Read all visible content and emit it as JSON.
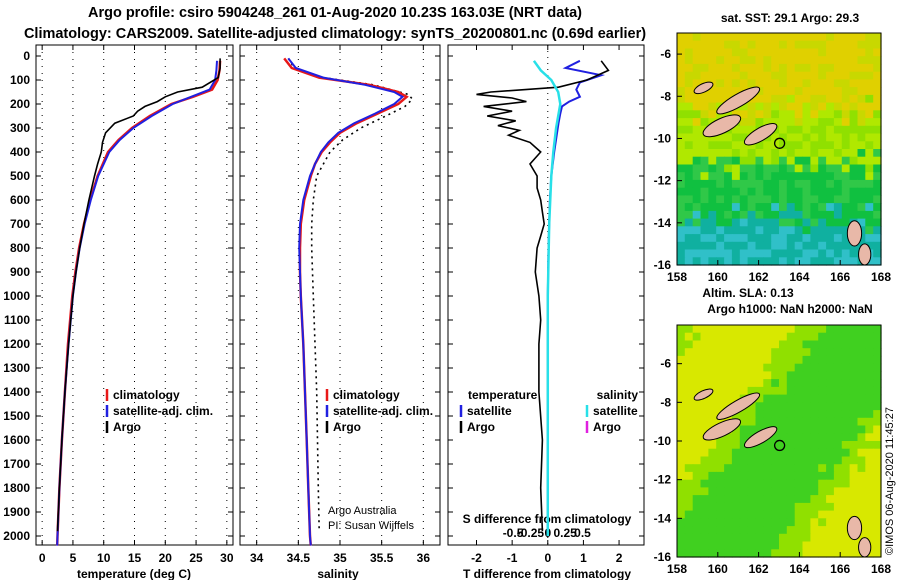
{
  "titles": {
    "line1": "Argo profile: csiro 5904248_261 01-Aug-2020 10.23S 163.03E (NRT data)",
    "line2": "Climatology: CARS2009. Satellite-adjusted climatology: synTS_20200801.nc (0.69d earlier)"
  },
  "colors": {
    "climatology": "#e81818",
    "satellite": "#2020e0",
    "argo": "#000000",
    "sal_diff_sat": "#28e0e8",
    "sal_diff_argo": "#e020e0"
  },
  "chart_data": [
    {
      "type": "line",
      "name": "temperature-profile",
      "xlabel": "temperature (deg C)",
      "ylabel": "depth",
      "xlim": [
        -1,
        31
      ],
      "ylim": [
        2100,
        0
      ],
      "x_ticks": [
        "0",
        "5",
        "10",
        "15",
        "20",
        "25",
        "30"
      ],
      "y_ticks": [
        "0",
        "100",
        "200",
        "300",
        "400",
        "500",
        "600",
        "700",
        "800",
        "900",
        "1000",
        "1100",
        "1200",
        "1300",
        "1400",
        "1500",
        "1600",
        "1700",
        "1800",
        "1900",
        "2000"
      ],
      "legend": [
        "climatology",
        "satellite-adj. clim.",
        "Argo"
      ],
      "series": [
        {
          "name": "climatology",
          "depth": [
            20,
            60,
            100,
            140,
            170,
            200,
            250,
            300,
            350,
            400,
            500,
            600,
            700,
            800,
            900,
            1000,
            1200,
            1400,
            1600,
            1800,
            2000,
            2040
          ],
          "values": [
            28.9,
            28.8,
            28.5,
            27.6,
            24.5,
            21,
            17.5,
            14.6,
            12.4,
            10.7,
            9.0,
            7.8,
            6.8,
            6.0,
            5.4,
            4.9,
            4.2,
            3.7,
            3.2,
            2.8,
            2.5,
            2.45
          ]
        },
        {
          "name": "satellite-adj. clim.",
          "depth": [
            20,
            60,
            100,
            140,
            170,
            200,
            250,
            300,
            350,
            400,
            500,
            600,
            700,
            800,
            900,
            1000,
            1200,
            1400,
            1600,
            1800,
            2000,
            2040
          ],
          "values": [
            28.4,
            28.3,
            28.1,
            27.2,
            24.2,
            21.2,
            17.8,
            14.8,
            12.6,
            10.9,
            9.1,
            7.9,
            6.9,
            6.1,
            5.5,
            5.0,
            4.3,
            3.7,
            3.2,
            2.8,
            2.5,
            2.45
          ]
        },
        {
          "name": "Argo",
          "depth": [
            10,
            50,
            90,
            130,
            150,
            170,
            190,
            210,
            230,
            250,
            280,
            320,
            360,
            400,
            450,
            500,
            600,
            700,
            800,
            900,
            1000,
            1200,
            1400,
            1600,
            1800,
            1980
          ],
          "values": [
            28.9,
            28.9,
            28.6,
            26,
            22,
            20,
            18.7,
            16.7,
            15.5,
            14.8,
            11.8,
            10.3,
            9.8,
            9.6,
            9.0,
            8.5,
            7.6,
            6.8,
            6.1,
            5.5,
            5.0,
            4.3,
            3.7,
            3.2,
            2.8,
            2.5
          ]
        }
      ]
    },
    {
      "type": "line",
      "name": "salinity-profile",
      "xlabel": "salinity",
      "ylabel": "depth",
      "xlim": [
        33.8,
        36.2
      ],
      "ylim": [
        2100,
        0
      ],
      "x_ticks": [
        "34",
        "34.5",
        "35",
        "35.5",
        "36"
      ],
      "legend": [
        "climatology",
        "satellite-adj. clim.",
        "Argo"
      ],
      "annotation": [
        "Argo Australia",
        "PI: Susan Wijffels"
      ],
      "series": [
        {
          "name": "climatology",
          "depth": [
            10,
            50,
            90,
            120,
            150,
            170,
            200,
            240,
            280,
            320,
            360,
            400,
            450,
            500,
            600,
            700,
            800,
            900,
            1000,
            1200,
            1400,
            1600,
            1800,
            2000,
            2040
          ],
          "values": [
            34.33,
            34.42,
            34.75,
            35.35,
            35.7,
            35.8,
            35.7,
            35.45,
            35.2,
            35.0,
            34.88,
            34.78,
            34.7,
            34.65,
            34.57,
            34.53,
            34.52,
            34.52,
            34.53,
            34.56,
            34.58,
            34.6,
            34.62,
            34.64,
            34.65
          ]
        },
        {
          "name": "satellite-adj. clim.",
          "depth": [
            10,
            50,
            90,
            120,
            150,
            170,
            200,
            240,
            280,
            320,
            360,
            400,
            450,
            500,
            600,
            700,
            800,
            900,
            1000,
            1200,
            1400,
            1600,
            1800,
            2000,
            2040
          ],
          "values": [
            34.38,
            34.47,
            34.8,
            35.3,
            35.65,
            35.75,
            35.65,
            35.42,
            35.17,
            34.98,
            34.86,
            34.77,
            34.7,
            34.64,
            34.56,
            34.52,
            34.51,
            34.52,
            34.53,
            34.56,
            34.58,
            34.6,
            34.62,
            34.64,
            34.65
          ]
        },
        {
          "name": "Argo",
          "depth": [
            10,
            50,
            90,
            120,
            160,
            180,
            210,
            250,
            300,
            350,
            400,
            500,
            600,
            700,
            800,
            900,
            1000,
            1200,
            1400,
            1600,
            1800,
            1980
          ],
          "values": [
            34.38,
            34.45,
            34.8,
            35.4,
            35.82,
            35.87,
            35.78,
            35.55,
            35.25,
            35.03,
            34.88,
            34.72,
            34.68,
            34.66,
            34.66,
            34.67,
            34.68,
            34.7,
            34.72,
            34.73,
            34.74,
            34.75
          ]
        }
      ]
    },
    {
      "type": "line",
      "name": "difference-profile",
      "xlabel": "T difference from climatology",
      "x2label": "S difference from climatology",
      "xlim": [
        -2.8,
        2.7
      ],
      "ylim": [
        2100,
        0
      ],
      "x_ticks": [
        "-2",
        "-1",
        "0",
        "1",
        "2"
      ],
      "x2_ticks": [
        "-0.5",
        "-0.25",
        "0",
        "0.25",
        "0.5"
      ],
      "legend": {
        "temperature_title": "temperature",
        "salinity_title": "salinity",
        "temperature": [
          "satellite",
          "Argo"
        ],
        "salinity": [
          "satellite",
          "Argo"
        ]
      },
      "series": [
        {
          "name": "temperature-satellite",
          "depth": [
            20,
            50,
            80,
            110,
            140,
            170,
            190,
            210,
            240,
            280,
            330,
            400,
            500,
            600,
            800,
            1000,
            1500,
            2000
          ],
          "values": [
            0.9,
            0.5,
            1.5,
            0.9,
            0.8,
            0.9,
            0.6,
            0.4,
            0.35,
            0.3,
            0.25,
            0.18,
            0.1,
            0.06,
            0.02,
            0,
            0,
            0
          ]
        },
        {
          "name": "temperature-Argo",
          "depth": [
            20,
            60,
            100,
            130,
            150,
            160,
            175,
            190,
            210,
            230,
            250,
            270,
            290,
            310,
            330,
            360,
            400,
            450,
            500,
            550,
            600,
            650,
            700,
            750,
            800,
            900,
            1000,
            1100,
            1200,
            1400,
            1600,
            1800,
            1980
          ],
          "values": [
            1.5,
            1.7,
            1.1,
            0.3,
            -1.6,
            -2.0,
            -1.0,
            -0.6,
            -1.8,
            -1.0,
            -1.7,
            -0.9,
            -1.4,
            -0.8,
            -1.1,
            -0.5,
            -0.2,
            -0.5,
            -0.3,
            -0.3,
            -0.2,
            -0.15,
            -0.1,
            -0.2,
            -0.3,
            -0.35,
            -0.25,
            -0.2,
            -0.25,
            -0.25,
            -0.15,
            -0.2,
            -0.15
          ]
        },
        {
          "name": "salinity-satellite",
          "depth": [
            20,
            60,
            100,
            150,
            200,
            300,
            400,
            500,
            700,
            1000,
            1500,
            2000
          ],
          "values": [
            -0.2,
            -0.1,
            0.05,
            0.15,
            0.18,
            0.12,
            0.08,
            0.05,
            0.02,
            0.0,
            0.0,
            0.0
          ]
        }
      ]
    },
    {
      "type": "heatmap",
      "name": "sst-map",
      "title": "sat. SST: 29.1 Argo: 29.3",
      "xlim": [
        158,
        168
      ],
      "ylim": [
        -16,
        -5
      ],
      "x_ticks": [
        "158",
        "160",
        "162",
        "164",
        "166",
        "168"
      ],
      "y_ticks": [
        "-6",
        "-8",
        "-10",
        "-12",
        "-14",
        "-16"
      ],
      "marker": [
        163.03,
        -10.23
      ]
    },
    {
      "type": "heatmap",
      "name": "sla-map",
      "title": "Altim. SLA: 0.13",
      "subtitle": "Argo h1000: NaN h2000: NaN",
      "xlim": [
        158,
        168
      ],
      "ylim": [
        -16,
        -4
      ],
      "x_ticks": [
        "158",
        "160",
        "162",
        "164",
        "166",
        "168"
      ],
      "y_ticks": [
        "-6",
        "-8",
        "-10",
        "-12",
        "-14",
        "-16"
      ],
      "marker": [
        163.03,
        -10.23
      ]
    }
  ],
  "footer_stamp": "©IMOS 06-Aug-2020 11:45:27"
}
